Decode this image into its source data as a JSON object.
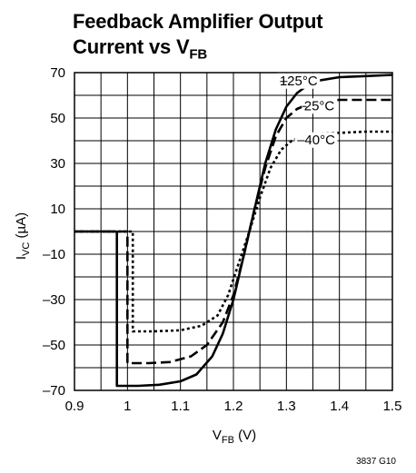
{
  "chart_data": {
    "type": "line",
    "title_line1": "Feedback Amplifier Output",
    "title_line2_text": "Current vs V",
    "title_line2_sub": "FB",
    "ylabel_main": "I",
    "ylabel_sub": "VC",
    "ylabel_unit": " (µA)",
    "xlabel_main": "V",
    "xlabel_sub": "FB",
    "xlabel_unit": " (V)",
    "xlim": [
      0.9,
      1.5
    ],
    "ylim": [
      -70,
      70
    ],
    "x_ticks": [
      0.9,
      1,
      1.1,
      1.2,
      1.3,
      1.4,
      1.5
    ],
    "x_tick_labels": [
      "0.9",
      "1",
      "1.1",
      "1.2",
      "1.3",
      "1.4",
      "1.5"
    ],
    "y_ticks": [
      70,
      50,
      30,
      10,
      -10,
      -30,
      -50,
      -70
    ],
    "y_tick_labels": [
      "70",
      "50",
      "30",
      "10",
      "–10",
      "–30",
      "–50",
      "–70"
    ],
    "grid": true,
    "grid_x_step": 0.05,
    "grid_y_step": 10,
    "series": [
      {
        "name": "125°C",
        "style": "solid",
        "x": [
          0.9,
          0.98,
          0.98,
          1.02,
          1.06,
          1.1,
          1.13,
          1.16,
          1.18,
          1.2,
          1.22,
          1.24,
          1.26,
          1.28,
          1.3,
          1.32,
          1.34,
          1.36,
          1.4,
          1.45,
          1.5
        ],
        "y": [
          0,
          0,
          -68,
          -68,
          -67.5,
          -66,
          -63,
          -55,
          -45,
          -30,
          -10,
          10,
          30,
          45,
          55,
          61,
          64.5,
          66.5,
          68,
          68.5,
          69
        ]
      },
      {
        "name": "25°C",
        "style": "dashed",
        "x": [
          0.9,
          1.0,
          1.0,
          1.04,
          1.08,
          1.12,
          1.15,
          1.18,
          1.2,
          1.22,
          1.24,
          1.26,
          1.28,
          1.3,
          1.32,
          1.34,
          1.37,
          1.4,
          1.45,
          1.5
        ],
        "y": [
          0,
          0,
          -58,
          -58,
          -57.5,
          -55,
          -50,
          -40,
          -28,
          -10,
          10,
          28,
          42,
          50,
          54,
          56,
          57.5,
          58,
          58,
          58
        ]
      },
      {
        "name": "–40°C",
        "style": "dotted",
        "x": [
          0.9,
          1.01,
          1.01,
          1.05,
          1.1,
          1.14,
          1.17,
          1.19,
          1.21,
          1.23,
          1.25,
          1.27,
          1.29,
          1.31,
          1.33,
          1.35,
          1.4,
          1.45,
          1.5
        ],
        "y": [
          0,
          0,
          -44,
          -44,
          -43.5,
          -41.5,
          -37,
          -28,
          -14,
          0,
          15,
          28,
          36,
          40,
          42,
          43,
          43.5,
          44,
          44
        ]
      }
    ],
    "annotations": [
      "125°C",
      "25°C",
      "–40°C"
    ],
    "footnote": "3837 G10"
  }
}
